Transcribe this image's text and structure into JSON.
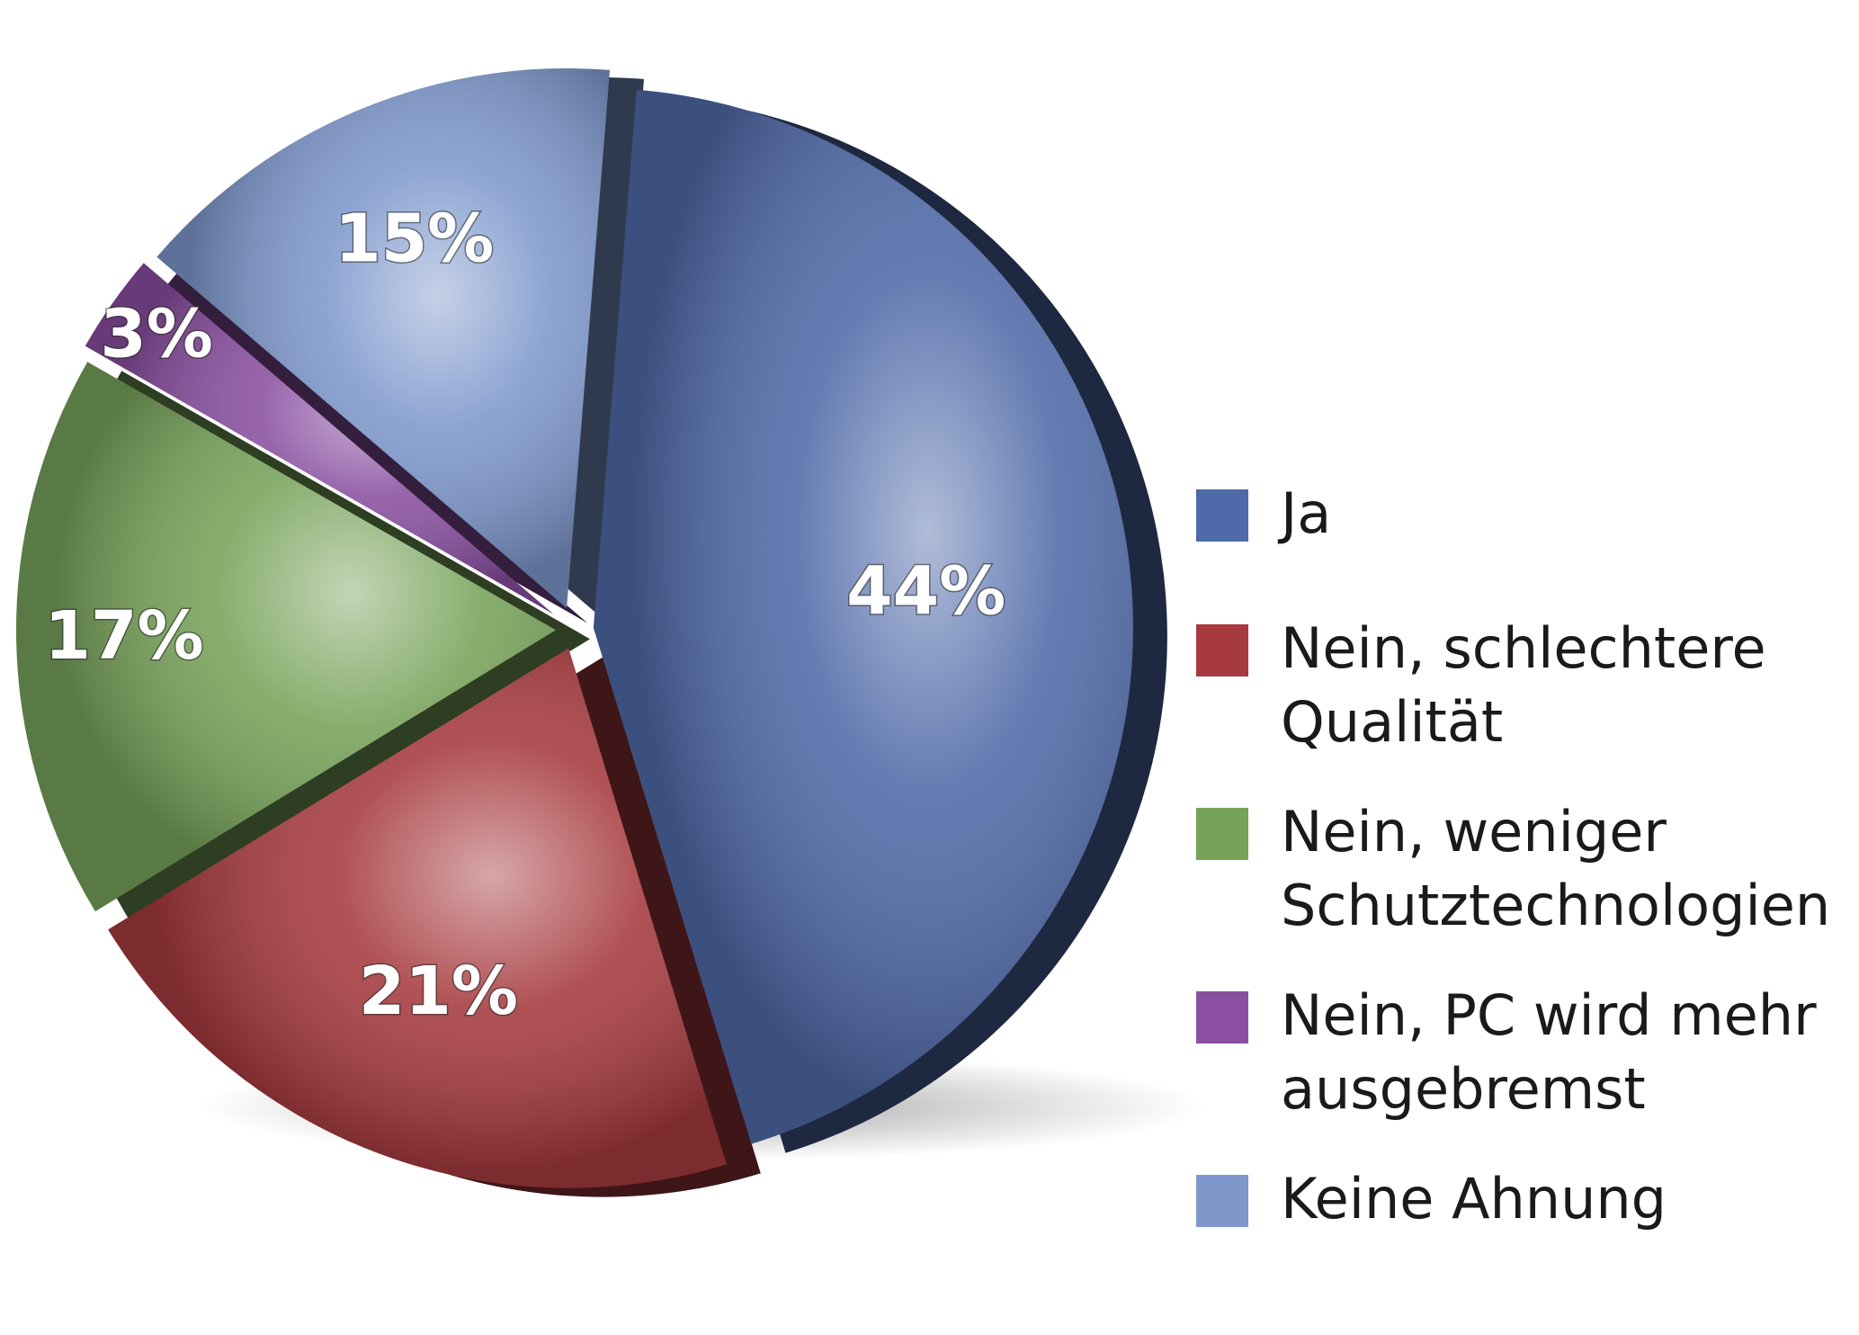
{
  "chart_data": {
    "type": "pie",
    "title": "",
    "slices": [
      {
        "label": "Ja",
        "value": 44,
        "value_label": "44%",
        "color": "#4f6aa8"
      },
      {
        "label": "Nein, schlechtere\nQualität",
        "value": 21,
        "value_label": "21%",
        "color": "#a63a3e"
      },
      {
        "label": "Nein, weniger\nSchutztechnologien",
        "value": 17,
        "value_label": "17%",
        "color": "#77a25a"
      },
      {
        "label": "Nein, PC wird mehr\nausgebremst",
        "value": 3,
        "value_label": "3%",
        "color": "#8a4fa0"
      },
      {
        "label": "Keine Ahnung",
        "value": 15,
        "value_label": "15%",
        "color": "#7e98cc"
      }
    ],
    "legend_position": "right",
    "legend_swatch_colors": [
      "#4f6aa8",
      "#a63a3e",
      "#77a25a",
      "#8a4fa0",
      "#7e98cc"
    ],
    "style": "3d-exploded"
  }
}
